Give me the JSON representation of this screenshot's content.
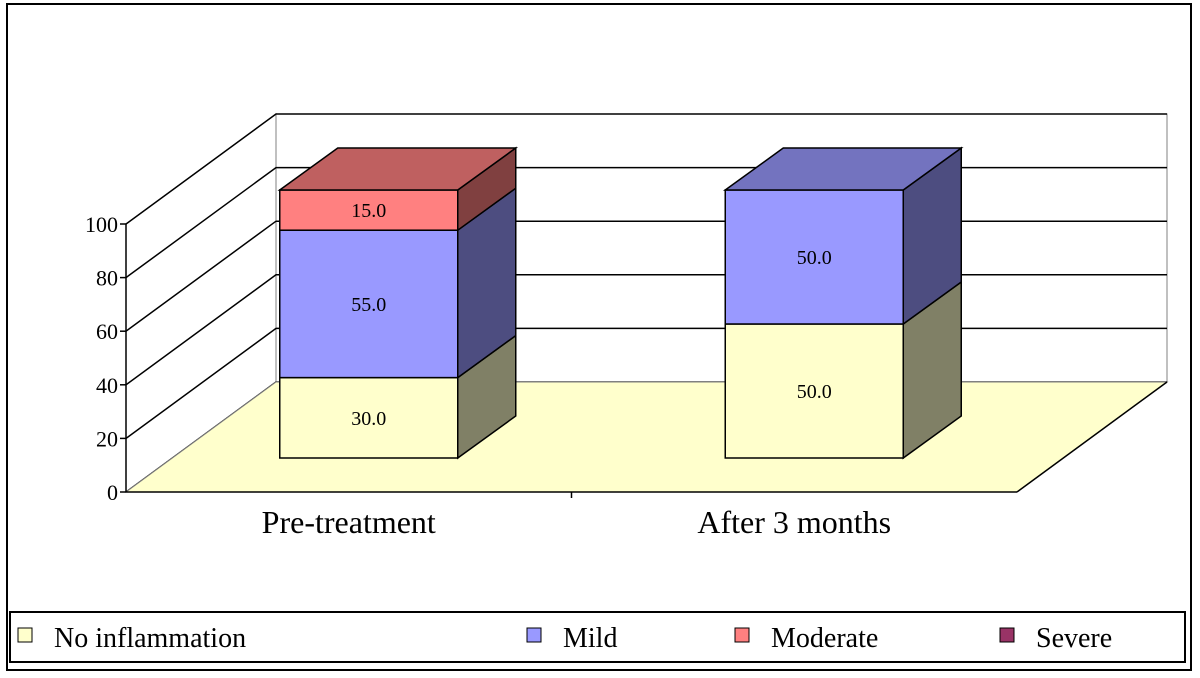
{
  "chart_data": {
    "type": "bar",
    "stacked": true,
    "three_d": true,
    "categories": [
      "Pre-treatment",
      "After 3 months"
    ],
    "series": [
      {
        "name": "No inflammation",
        "values": [
          30.0,
          50.0
        ],
        "color": "#FFFFCC"
      },
      {
        "name": "Mild",
        "values": [
          55.0,
          50.0
        ],
        "color": "#9999FF"
      },
      {
        "name": "Moderate",
        "values": [
          15.0,
          0.0
        ],
        "color": "#FF8080"
      },
      {
        "name": "Severe",
        "values": [
          0.0,
          0.0
        ],
        "color": "#993366"
      }
    ],
    "data_labels": [
      [
        "30.0",
        "55.0",
        "15.0",
        ""
      ],
      [
        "50.0",
        "50.0",
        "",
        ""
      ]
    ],
    "yticks": [
      "0",
      "20",
      "40",
      "60",
      "80",
      "100"
    ],
    "ylim": [
      0,
      100
    ],
    "grid": true,
    "floor_color": "#FFFFCC",
    "legend_position": "bottom"
  }
}
